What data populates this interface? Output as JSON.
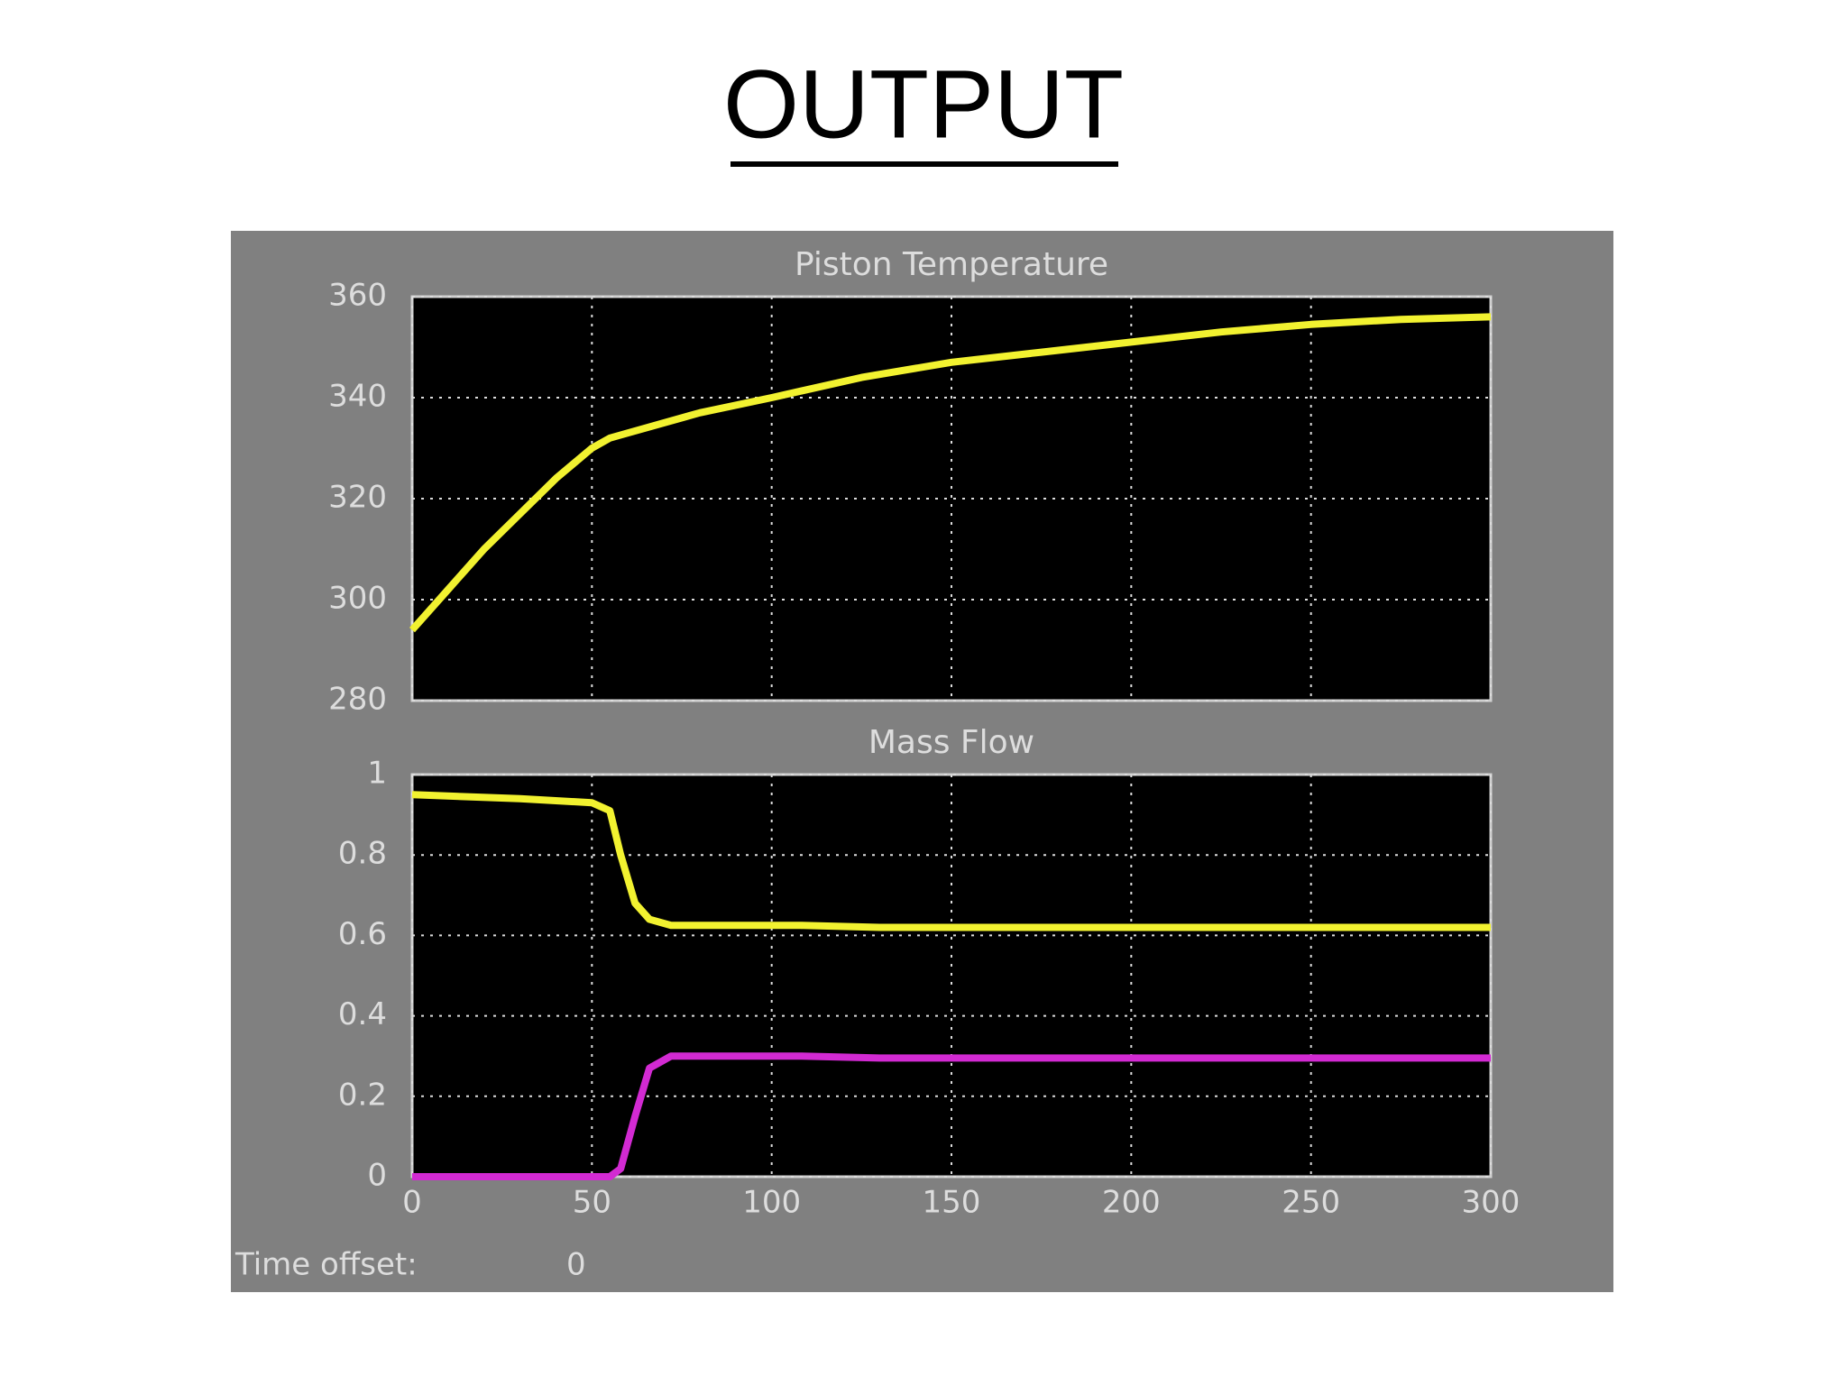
{
  "title": "OUTPUT",
  "time_offset": {
    "label": "Time offset:",
    "value": 0
  },
  "chart_data": [
    {
      "type": "line",
      "title": "Piston Temperature",
      "x": [
        0,
        10,
        20,
        30,
        40,
        50,
        55,
        60,
        80,
        100,
        125,
        150,
        175,
        200,
        225,
        250,
        275,
        300
      ],
      "values": [
        294,
        302,
        310,
        317,
        324,
        330,
        332,
        333,
        337,
        340,
        344,
        347,
        349,
        351,
        353,
        354.5,
        355.5,
        356
      ],
      "color": "#f2f230",
      "xlim": [
        0,
        300
      ],
      "xticks": [
        0,
        50,
        100,
        150,
        200,
        250,
        300
      ],
      "ylim": [
        280,
        360
      ],
      "yticks": [
        280,
        300,
        320,
        340,
        360
      ],
      "grid": true
    },
    {
      "type": "line",
      "title": "Mass Flow",
      "x": [
        0,
        30,
        50,
        55,
        58,
        62,
        66,
        72,
        108,
        130,
        300
      ],
      "series": [
        {
          "color": "#f2f230",
          "values": [
            0.95,
            0.94,
            0.93,
            0.91,
            0.8,
            0.68,
            0.64,
            0.625,
            0.625,
            0.62,
            0.62
          ]
        },
        {
          "color": "#d22ad2",
          "values": [
            0,
            0,
            0,
            0,
            0.02,
            0.15,
            0.27,
            0.3,
            0.3,
            0.295,
            0.295
          ]
        }
      ],
      "xlim": [
        0,
        300
      ],
      "xticks": [
        0,
        50,
        100,
        150,
        200,
        250,
        300
      ],
      "ylim": [
        0,
        1
      ],
      "yticks": [
        0,
        0.2,
        0.4,
        0.6,
        0.8,
        1
      ],
      "grid": true
    }
  ]
}
